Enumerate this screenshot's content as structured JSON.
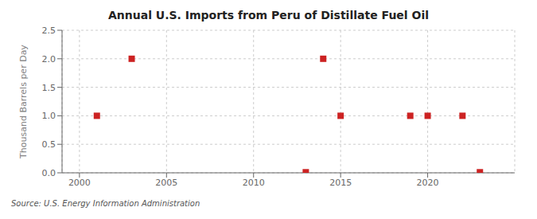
{
  "chart_data": {
    "type": "scatter",
    "title": "Annual U.S. Imports from Peru of Distillate Fuel Oil",
    "y_label": "Thousand Barrels per Day",
    "annotations": [
      "Source: U.S. Energy Information Administration"
    ],
    "x": [
      2001,
      2003,
      2013,
      2014,
      2015,
      2019,
      2020,
      2022,
      2023
    ],
    "values": [
      1.0,
      2.0,
      0.01,
      2.0,
      1.0,
      1.0,
      1.0,
      1.0,
      0.01
    ],
    "color": "#cc2222",
    "marker": "square",
    "xlim": [
      1999,
      2025
    ],
    "ylim": [
      0.0,
      2.5
    ],
    "xticks": [
      2000,
      2005,
      2010,
      2015,
      2020
    ],
    "yticks": [
      {
        "value": 0.0,
        "label": "0.0"
      },
      0.5,
      {
        "value": 1.0,
        "label": "1.0"
      },
      1.5,
      {
        "value": 2.0,
        "label": "2.0"
      },
      2.5
    ],
    "grid": true
  }
}
